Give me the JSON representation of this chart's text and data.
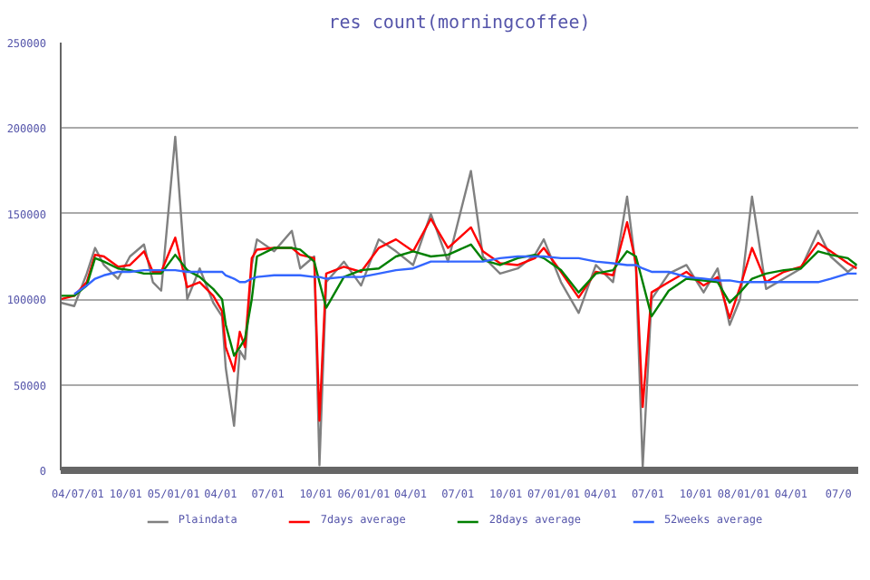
{
  "chart_data": {
    "type": "line",
    "title": "res count(morningcoffee)",
    "x": [
      "2004-05-29",
      "2004-06-24",
      "2004-07-18",
      "2004-08-03",
      "2004-08-20",
      "2004-09-16",
      "2004-10-09",
      "2004-11-05",
      "2004-11-22",
      "2004-12-08",
      "2005-01-04",
      "2005-01-27",
      "2005-02-20",
      "2005-03-18",
      "2005-04-04",
      "2005-04-11",
      "2005-04-27",
      "2005-05-08",
      "2005-05-18",
      "2005-05-31",
      "2005-06-10",
      "2005-07-13",
      "2005-08-16",
      "2005-09-01",
      "2005-09-28",
      "2005-10-08",
      "2005-10-21",
      "2005-11-24",
      "2005-12-27",
      "2006-01-30",
      "2006-03-04",
      "2006-04-06",
      "2006-05-10",
      "2006-06-12",
      "2006-07-26",
      "2006-08-18",
      "2006-09-20",
      "2006-10-24",
      "2006-11-26",
      "2006-12-13",
      "2007-01-15",
      "2007-02-18",
      "2007-03-23",
      "2007-04-25",
      "2007-05-22",
      "2007-06-08",
      "2007-06-21",
      "2007-07-08",
      "2007-08-10",
      "2007-09-13",
      "2007-10-16",
      "2007-11-12",
      "2007-12-05",
      "2007-12-25",
      "2008-01-17",
      "2008-02-13",
      "2008-03-18",
      "2008-04-20",
      "2008-05-23",
      "2008-06-16",
      "2008-07-19",
      "2008-08-05"
    ],
    "series": [
      {
        "name": "Plaindata",
        "color": "#808080",
        "values": [
          98000,
          96000,
          115000,
          130000,
          120000,
          112000,
          125000,
          132000,
          110000,
          105000,
          195000,
          100000,
          118000,
          98000,
          90000,
          60000,
          26000,
          70000,
          65000,
          120000,
          135000,
          128000,
          140000,
          118000,
          125000,
          3000,
          110000,
          122000,
          108000,
          135000,
          128000,
          120000,
          150000,
          122000,
          175000,
          125000,
          115000,
          118000,
          126000,
          135000,
          110000,
          92000,
          120000,
          110000,
          160000,
          118000,
          2000,
          100000,
          115000,
          120000,
          104000,
          118000,
          85000,
          100000,
          160000,
          106000,
          112000,
          118000,
          140000,
          125000,
          116000,
          120000
        ]
      },
      {
        "name": "7days average",
        "color": "#ff0000",
        "values": [
          100000,
          102000,
          110000,
          126000,
          125000,
          119000,
          120000,
          128000,
          116000,
          116000,
          136000,
          107000,
          110000,
          102000,
          93000,
          72000,
          58000,
          81000,
          72000,
          124000,
          129000,
          130000,
          130000,
          126000,
          124000,
          29000,
          115000,
          119000,
          116000,
          130000,
          135000,
          128000,
          147000,
          130000,
          142000,
          128000,
          121000,
          120000,
          124000,
          130000,
          116000,
          101000,
          116000,
          114000,
          145000,
          121000,
          37000,
          104000,
          110000,
          116000,
          108000,
          113000,
          89000,
          107000,
          130000,
          110000,
          116000,
          119000,
          133000,
          128000,
          121000,
          118000
        ]
      },
      {
        "name": "28days average",
        "color": "#008000",
        "values": [
          102000,
          102000,
          108000,
          124000,
          122000,
          118000,
          117000,
          115000,
          115000,
          115000,
          126000,
          117000,
          113000,
          106000,
          100000,
          85000,
          67000,
          72000,
          77000,
          100000,
          125000,
          130000,
          130000,
          129000,
          122000,
          110000,
          95000,
          113000,
          117000,
          118000,
          125000,
          128000,
          125000,
          126000,
          132000,
          123000,
          120000,
          124000,
          126000,
          124000,
          117000,
          104000,
          115000,
          117000,
          128000,
          125000,
          110000,
          90000,
          105000,
          112000,
          111000,
          110000,
          98000,
          104000,
          112000,
          115000,
          117000,
          118000,
          128000,
          126000,
          124000,
          120000
        ]
      },
      {
        "name": "52weeks average",
        "color": "#3366ff",
        "values": [
          null,
          103000,
          108000,
          112000,
          114000,
          116000,
          116000,
          117000,
          117000,
          117000,
          117000,
          116000,
          116000,
          116000,
          116000,
          114000,
          112000,
          110000,
          110000,
          112000,
          113000,
          114000,
          114000,
          114000,
          113000,
          113000,
          112000,
          113000,
          113000,
          115000,
          117000,
          118000,
          122000,
          122000,
          122000,
          122000,
          124000,
          125000,
          125000,
          125000,
          124000,
          124000,
          122000,
          121000,
          120000,
          120000,
          118000,
          116000,
          116000,
          113000,
          112000,
          111000,
          111000,
          110000,
          110000,
          110000,
          110000,
          110000,
          110000,
          112000,
          115000,
          115000
        ]
      }
    ],
    "xlim": [
      "2004-05-29",
      "2008-08-08"
    ],
    "xticks": [
      {
        "value": "2004-07-01",
        "label": "04/07/01"
      },
      {
        "value": "2004-10-01",
        "label": "10/01"
      },
      {
        "value": "2005-01-01",
        "label": "05/01/01"
      },
      {
        "value": "2005-04-01",
        "label": "04/01"
      },
      {
        "value": "2005-07-01",
        "label": "07/01"
      },
      {
        "value": "2005-10-01",
        "label": "10/01"
      },
      {
        "value": "2006-01-01",
        "label": "06/01/01"
      },
      {
        "value": "2006-04-01",
        "label": "04/01"
      },
      {
        "value": "2006-07-01",
        "label": "07/01"
      },
      {
        "value": "2006-10-01",
        "label": "10/01"
      },
      {
        "value": "2007-01-01",
        "label": "07/01/01"
      },
      {
        "value": "2007-04-01",
        "label": "04/01"
      },
      {
        "value": "2007-07-01",
        "label": "07/01"
      },
      {
        "value": "2007-10-01",
        "label": "10/01"
      },
      {
        "value": "2008-01-01",
        "label": "08/01/01"
      },
      {
        "value": "2008-04-01",
        "label": "04/01"
      },
      {
        "value": "2008-07-01",
        "label": "07/0"
      }
    ],
    "ylim": [
      0,
      250000
    ],
    "yticks": [
      0,
      50000,
      100000,
      150000,
      200000,
      250000
    ],
    "grid": "y",
    "legend": "bottom",
    "marker": "none",
    "line_style": "solid"
  }
}
